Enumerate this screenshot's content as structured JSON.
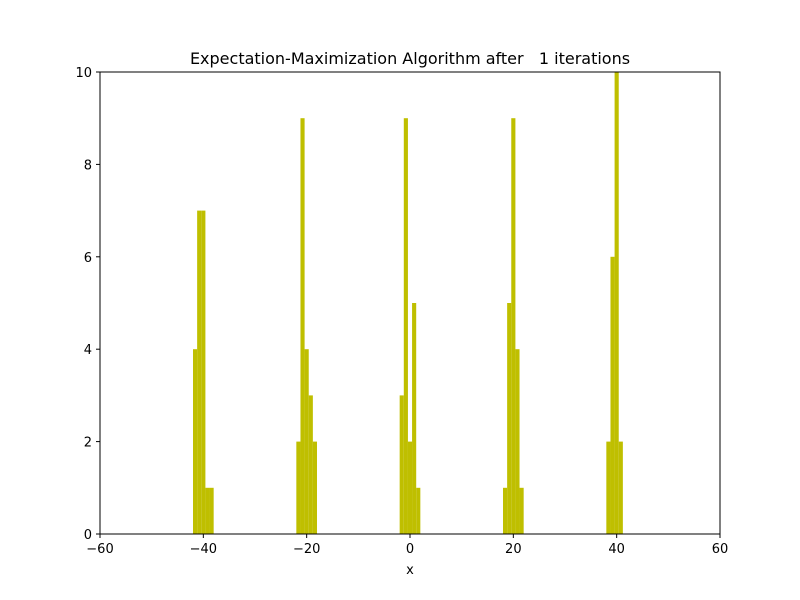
{
  "chart_data": {
    "type": "bar",
    "title": "Expectation-Maximization Algorithm after   1 iterations",
    "xlabel": "x",
    "ylabel": "",
    "xlim": [
      -60,
      60
    ],
    "ylim": [
      0,
      10
    ],
    "xticks": [
      -60,
      -40,
      -20,
      0,
      20,
      40,
      60
    ],
    "yticks": [
      0,
      2,
      4,
      6,
      8,
      10
    ],
    "grid": false,
    "bar_color": "#bfbf00",
    "bin_width": 0.8,
    "bins": [
      {
        "x": -41.6,
        "value": 4
      },
      {
        "x": -40.8,
        "value": 7
      },
      {
        "x": -40.0,
        "value": 7
      },
      {
        "x": -39.2,
        "value": 1
      },
      {
        "x": -38.4,
        "value": 1
      },
      {
        "x": -21.6,
        "value": 2
      },
      {
        "x": -20.8,
        "value": 9
      },
      {
        "x": -20.0,
        "value": 4
      },
      {
        "x": -19.2,
        "value": 3
      },
      {
        "x": -18.4,
        "value": 2
      },
      {
        "x": -1.6,
        "value": 3
      },
      {
        "x": -0.8,
        "value": 9
      },
      {
        "x": 0.0,
        "value": 2
      },
      {
        "x": 0.8,
        "value": 5
      },
      {
        "x": 1.6,
        "value": 1
      },
      {
        "x": 18.4,
        "value": 1
      },
      {
        "x": 19.2,
        "value": 5
      },
      {
        "x": 20.0,
        "value": 9
      },
      {
        "x": 20.8,
        "value": 4
      },
      {
        "x": 21.6,
        "value": 1
      },
      {
        "x": 38.4,
        "value": 2
      },
      {
        "x": 39.2,
        "value": 6
      },
      {
        "x": 40.0,
        "value": 10
      },
      {
        "x": 40.8,
        "value": 2
      }
    ]
  }
}
